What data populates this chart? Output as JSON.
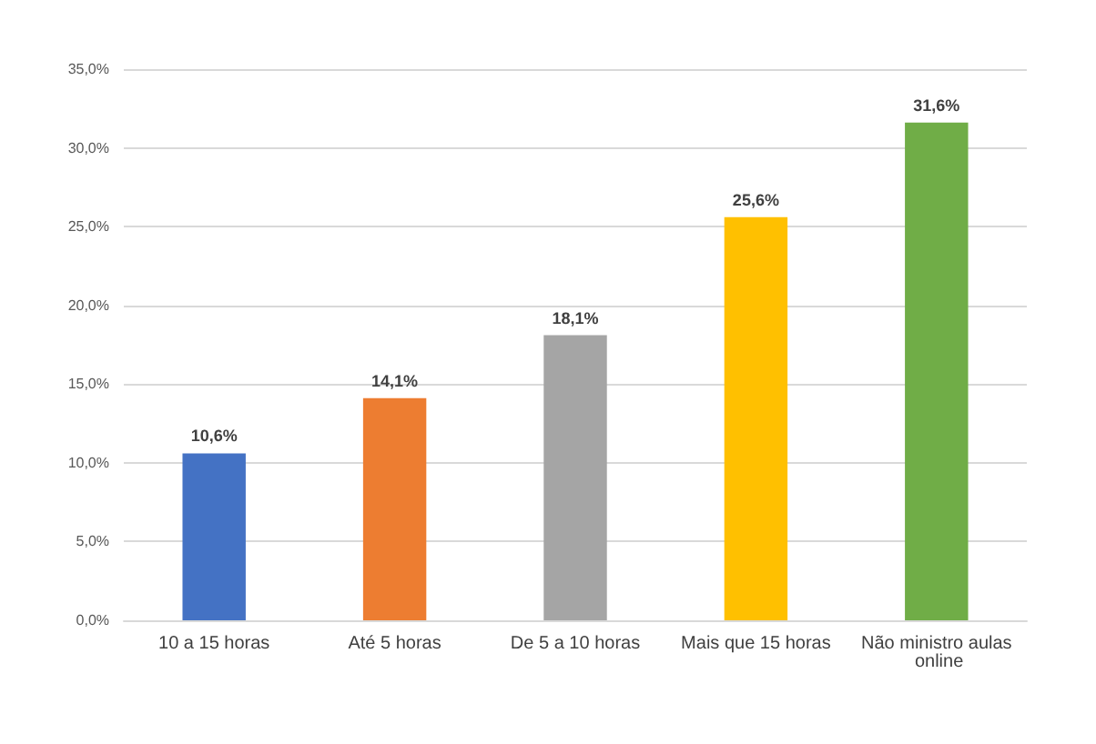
{
  "chart_data": {
    "type": "bar",
    "categories": [
      "10 a 15 horas",
      "Até 5 horas",
      "De 5 a 10 horas",
      "Mais que 15 horas",
      "Não ministro aulas online"
    ],
    "values": [
      10.6,
      14.1,
      18.1,
      25.6,
      31.6
    ],
    "colors": [
      "#4472c4",
      "#ed7d31",
      "#a5a5a5",
      "#ffc000",
      "#70ad47"
    ],
    "value_labels": [
      "10,6%",
      "14,1%",
      "18,1%",
      "25,6%",
      "31,6%"
    ],
    "ylim": [
      0,
      35
    ],
    "yticks": [
      {
        "value": 0,
        "label": "0,0%"
      },
      {
        "value": 5,
        "label": "5,0%"
      },
      {
        "value": 10,
        "label": "10,0%"
      },
      {
        "value": 15,
        "label": "15,0%"
      },
      {
        "value": 20,
        "label": "20,0%"
      },
      {
        "value": 25,
        "label": "25,0%"
      },
      {
        "value": 30,
        "label": "30,0%"
      },
      {
        "value": 35,
        "label": "35,0%"
      }
    ],
    "grid": "y"
  }
}
